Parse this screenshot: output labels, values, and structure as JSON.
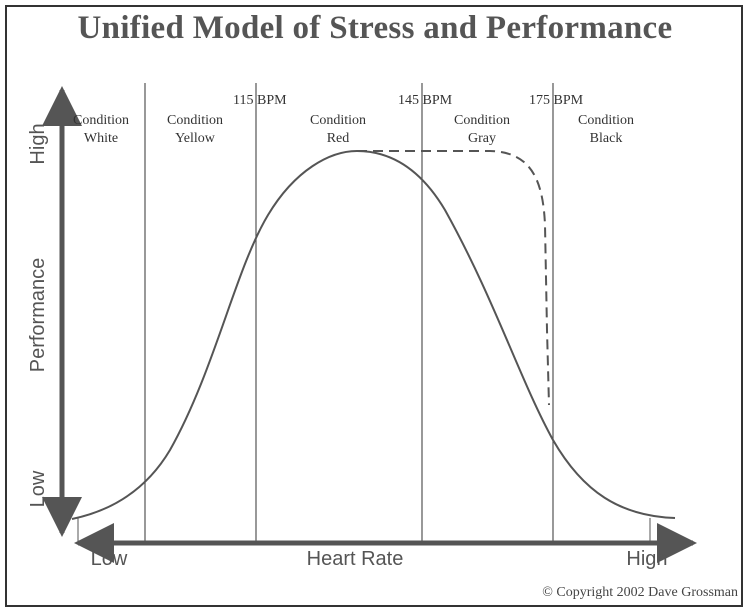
{
  "title": "Unified Model of Stress and Performance",
  "y_axis": {
    "label": "Performance",
    "low_label": "Low",
    "high_label": "High"
  },
  "x_axis": {
    "label": "Heart Rate",
    "low_label": "Low",
    "high_label": "High"
  },
  "thresholds": [
    "115 BPM",
    "145 BPM",
    "175 BPM"
  ],
  "conditions": [
    {
      "line1": "Condition",
      "line2": "White"
    },
    {
      "line1": "Condition",
      "line2": "Yellow"
    },
    {
      "line1": "Condition",
      "line2": "Red"
    },
    {
      "line1": "Condition",
      "line2": "Gray"
    },
    {
      "line1": "Condition",
      "line2": "Black"
    }
  ],
  "copyright": "© Copyright 2002 Dave Grossman",
  "colors": {
    "line": "#555555",
    "text": "#333333",
    "title": "#555555"
  }
}
